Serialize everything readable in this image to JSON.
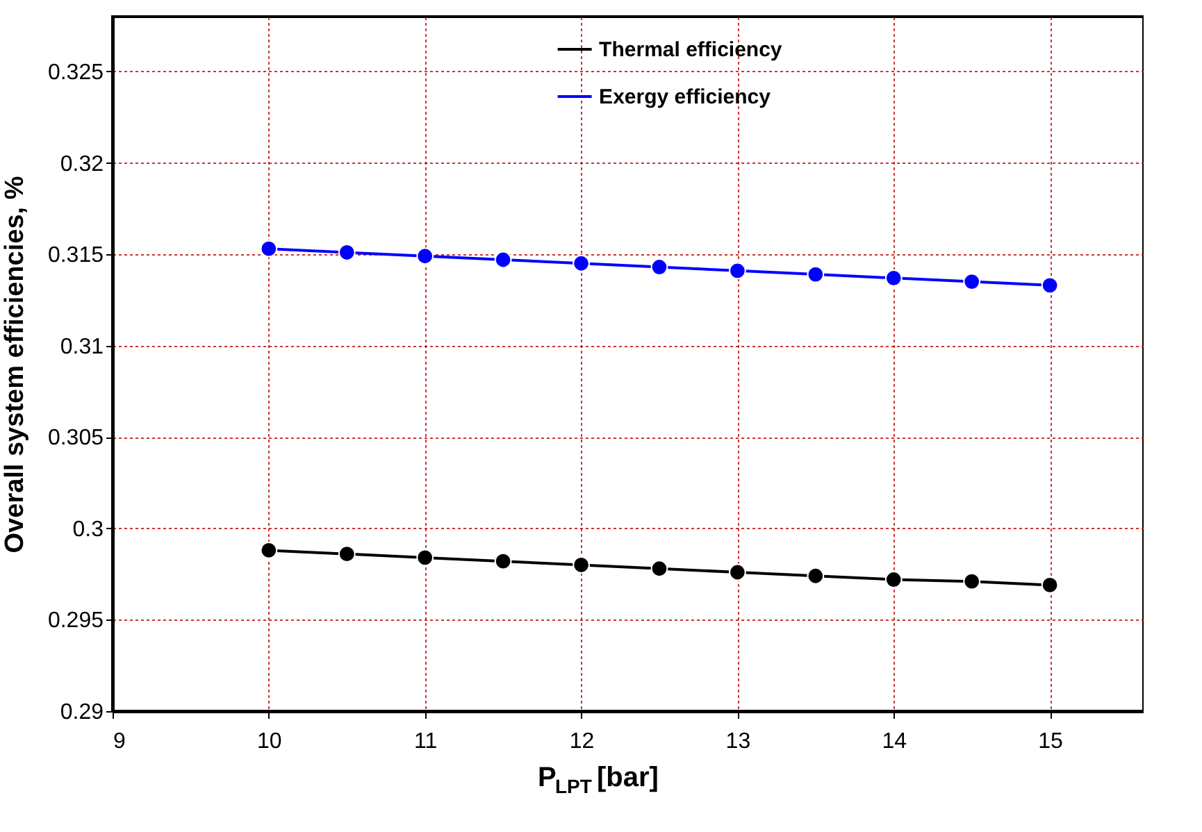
{
  "chart_data": {
    "type": "line",
    "xlabel": "P$_{LPT}$  [bar]",
    "ylabel": "Overall system efficiencies, %",
    "x": [
      10,
      10.5,
      11,
      11.5,
      12,
      12.5,
      13,
      13.5,
      14,
      14.5,
      15
    ],
    "series": [
      {
        "name": "Thermal efficiency",
        "color": "#000000",
        "values": [
          0.2988,
          0.2986,
          0.2984,
          0.2982,
          0.298,
          0.2978,
          0.2976,
          0.2974,
          0.2972,
          0.2971,
          0.2969
        ]
      },
      {
        "name": "Exergy efficiency",
        "color": "#0000ff",
        "values": [
          0.3153,
          0.3151,
          0.3149,
          0.3147,
          0.3145,
          0.3143,
          0.3141,
          0.3139,
          0.3137,
          0.3135,
          0.3133
        ]
      }
    ],
    "xlim": [
      9,
      15.6
    ],
    "ylim": [
      0.29,
      0.328
    ],
    "xticks": [
      9,
      10,
      11,
      12,
      13,
      14,
      15
    ],
    "yticks": [
      0.29,
      0.295,
      0.3,
      0.305,
      0.31,
      0.315,
      0.32,
      0.325
    ],
    "grid": true,
    "legend": "top",
    "marker": "circle",
    "line_style": "solid"
  }
}
